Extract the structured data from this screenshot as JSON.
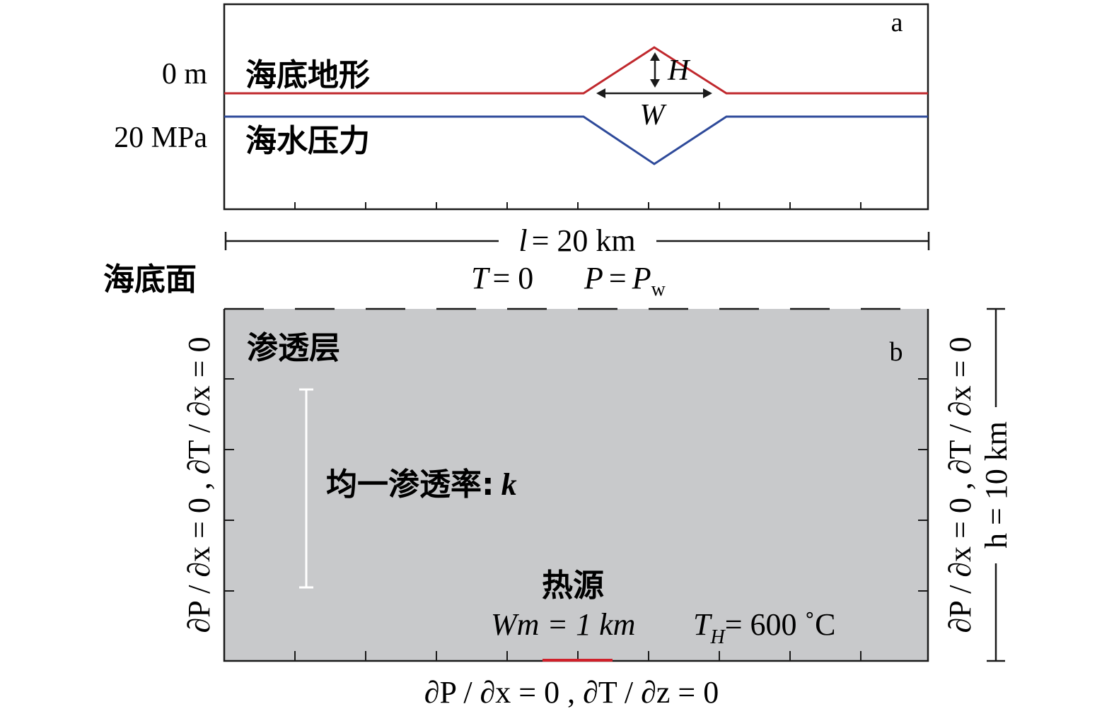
{
  "panel_a": {
    "letter": "a",
    "left_label_top": "0 m",
    "left_label_bottom": "20 MPa",
    "topography_label": "海底地形",
    "pressure_label": "海水压力",
    "height_symbol": "H",
    "width_symbol": "W",
    "topography_color": "#c0282d",
    "pressure_color": "#2e4a9a"
  },
  "length_bar": {
    "symbol": "l",
    "text": "= 20 km"
  },
  "seafloor": {
    "label": "海底面",
    "temp_symbol": "T",
    "temp_text": "= 0",
    "pressure_symbol": "P",
    "pressure_eq": "=",
    "pressure_value": "P",
    "pressure_subscript": "w"
  },
  "panel_b": {
    "letter": "b",
    "layer_label": "渗透层",
    "permeability_label": "均一渗透率:",
    "permeability_symbol": "k",
    "heat_source_label": "热源",
    "wm_text": "Wm = 1 km",
    "th_symbol": "T",
    "th_subscript": "H",
    "th_text": "= 600 ˚C",
    "left_bc": "∂P / ∂x = 0 , ∂T / ∂x = 0",
    "right_bc": "∂P / ∂x = 0 , ∂T / ∂x = 0",
    "bottom_bc": "∂P / ∂x = 0 , ∂T / ∂z = 0",
    "depth_label": "h = 10 km",
    "fill_color": "#c8c9cb",
    "heat_source_color": "#d0202a"
  }
}
